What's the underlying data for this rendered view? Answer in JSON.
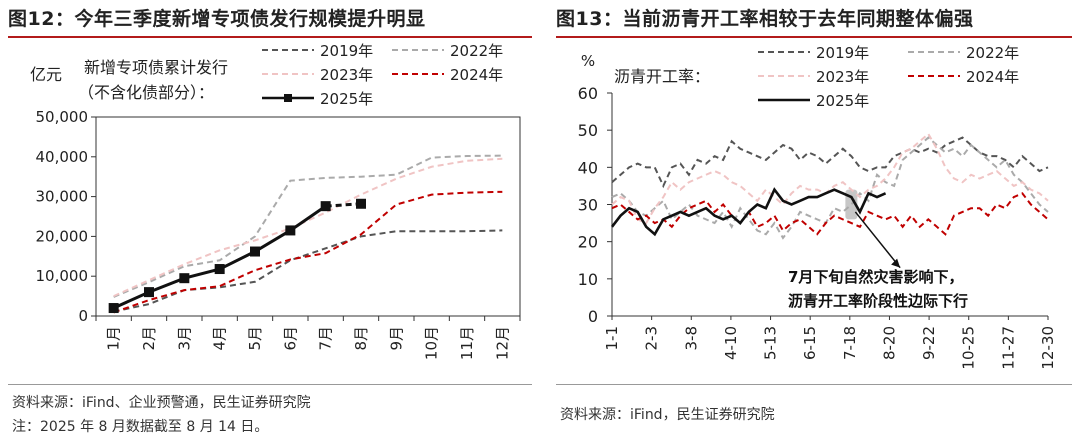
{
  "left": {
    "title": "图12：今年三季度新增专项债发行规模提升明显",
    "source": "资料来源：iFind、企业预警通，民生证券研究院",
    "note": "注：2025 年 8 月数据截至 8 月 14 日。",
    "chart_data": {
      "type": "line",
      "ylabel": "亿元",
      "annotation": [
        "新增专项债累计发行",
        "（不含化债部分）："
      ],
      "categories": [
        "1月",
        "2月",
        "3月",
        "4月",
        "5月",
        "6月",
        "7月",
        "8月",
        "9月",
        "10月",
        "11月",
        "12月"
      ],
      "ylim": [
        0,
        50000
      ],
      "yticks": [
        0,
        10000,
        20000,
        30000,
        40000,
        50000
      ],
      "ytick_labels": [
        "0",
        "10,000",
        "20,000",
        "30,000",
        "40,000",
        "50,000"
      ],
      "series": [
        {
          "name": "2019年",
          "color": "#555555",
          "style": "dashed",
          "values": [
            1100,
            3000,
            6500,
            7200,
            8600,
            14000,
            17000,
            20000,
            21300,
            21300,
            21300,
            21500
          ]
        },
        {
          "name": "2022年",
          "color": "#aaaaaa",
          "style": "dashed",
          "values": [
            4800,
            8500,
            12500,
            14000,
            20000,
            34000,
            34700,
            35000,
            35500,
            39800,
            40200,
            40300
          ]
        },
        {
          "name": "2023年",
          "color": "#f0c4c4",
          "style": "dashed",
          "values": [
            5000,
            9000,
            13000,
            16500,
            19000,
            22000,
            26000,
            30500,
            34500,
            37500,
            39000,
            39500
          ]
        },
        {
          "name": "2024年",
          "color": "#c00000",
          "style": "dashed",
          "values": [
            900,
            4000,
            6500,
            7500,
            11500,
            14200,
            15800,
            20500,
            28000,
            30500,
            31000,
            31200
          ]
        },
        {
          "name": "2025年",
          "color": "#111111",
          "style": "solid-marker",
          "values": [
            2000,
            6000,
            9500,
            11800,
            16200,
            21500,
            27600,
            28200,
            null,
            null,
            null,
            null
          ]
        }
      ]
    }
  },
  "right": {
    "title": "图13：当前沥青开工率相较于去年同期整体偏强",
    "source": "资料来源：iFind，民生证券研究院",
    "chart_data": {
      "type": "line",
      "ylabel": "%",
      "annotation": [
        "沥青开工率："
      ],
      "callout": [
        "7月下旬自然灾害影响下，",
        "沥青开工率阶段性边际下行"
      ],
      "tick_labels": [
        "1-1",
        "2-3",
        "3-8",
        "4-10",
        "5-13",
        "6-15",
        "7-18",
        "8-20",
        "9-22",
        "10-25",
        "11-27",
        "12-30"
      ],
      "ylim": [
        0,
        60
      ],
      "yticks": [
        0,
        10,
        20,
        30,
        40,
        50,
        60
      ],
      "series": [
        {
          "name": "2019年",
          "color": "#555555",
          "style": "dashed",
          "values": [
            36,
            38,
            40,
            41,
            40,
            40,
            35,
            40,
            41,
            38,
            42,
            41,
            43,
            42,
            47,
            45,
            44,
            43,
            42,
            44,
            46,
            45,
            42,
            44,
            43,
            41,
            43,
            45,
            43,
            40,
            39,
            40,
            40,
            43,
            44,
            45,
            44,
            45,
            44,
            46,
            47,
            48,
            46,
            44,
            43,
            43,
            42,
            40,
            43,
            41,
            39,
            40
          ]
        },
        {
          "name": "2022年",
          "color": "#aaaaaa",
          "style": "dashed",
          "values": [
            32,
            33,
            31,
            28,
            27,
            29,
            31,
            26,
            28,
            30,
            27,
            26,
            25,
            28,
            24,
            29,
            26,
            23,
            22,
            25,
            21,
            24,
            28,
            27,
            26,
            25,
            29,
            28,
            30,
            33,
            31,
            38,
            36,
            35,
            42,
            44,
            46,
            48,
            46,
            44,
            45,
            43,
            46,
            44,
            42,
            40,
            42,
            38,
            36,
            33,
            30,
            28
          ]
        },
        {
          "name": "2023年",
          "color": "#f0c4c4",
          "style": "dashed",
          "values": [
            30,
            32,
            31,
            26,
            25,
            29,
            32,
            36,
            34,
            36,
            37,
            38,
            39,
            38,
            36,
            35,
            33,
            31,
            34,
            32,
            30,
            33,
            35,
            34,
            34,
            33,
            35,
            36,
            34,
            32,
            34,
            35,
            37,
            40,
            44,
            45,
            47,
            49,
            45,
            40,
            37,
            36,
            38,
            37,
            38,
            39,
            37,
            35,
            36,
            34,
            33,
            31
          ]
        },
        {
          "name": "2024年",
          "color": "#c00000",
          "style": "dashed",
          "values": [
            29,
            30,
            28,
            26,
            27,
            25,
            26,
            24,
            27,
            29,
            30,
            31,
            28,
            30,
            27,
            25,
            28,
            24,
            25,
            27,
            23,
            25,
            26,
            24,
            22,
            25,
            27,
            26,
            25,
            24,
            28,
            27,
            26,
            27,
            24,
            27,
            24,
            26,
            24,
            22,
            27,
            28,
            29,
            29,
            27,
            30,
            29,
            32,
            33,
            30,
            28,
            26
          ]
        },
        {
          "name": "2025年",
          "color": "#111111",
          "style": "solid",
          "values": [
            24,
            27,
            29,
            28,
            24,
            22,
            26,
            27,
            28,
            27,
            28,
            29,
            27,
            26,
            27,
            25,
            28,
            30,
            29,
            34,
            31,
            30,
            31,
            32,
            32,
            33,
            34,
            33,
            32,
            28,
            33,
            32,
            33,
            null,
            null,
            null,
            null,
            null,
            null,
            null,
            null,
            null,
            null,
            null,
            null,
            null,
            null,
            null,
            null,
            null,
            null,
            null
          ]
        }
      ]
    }
  }
}
